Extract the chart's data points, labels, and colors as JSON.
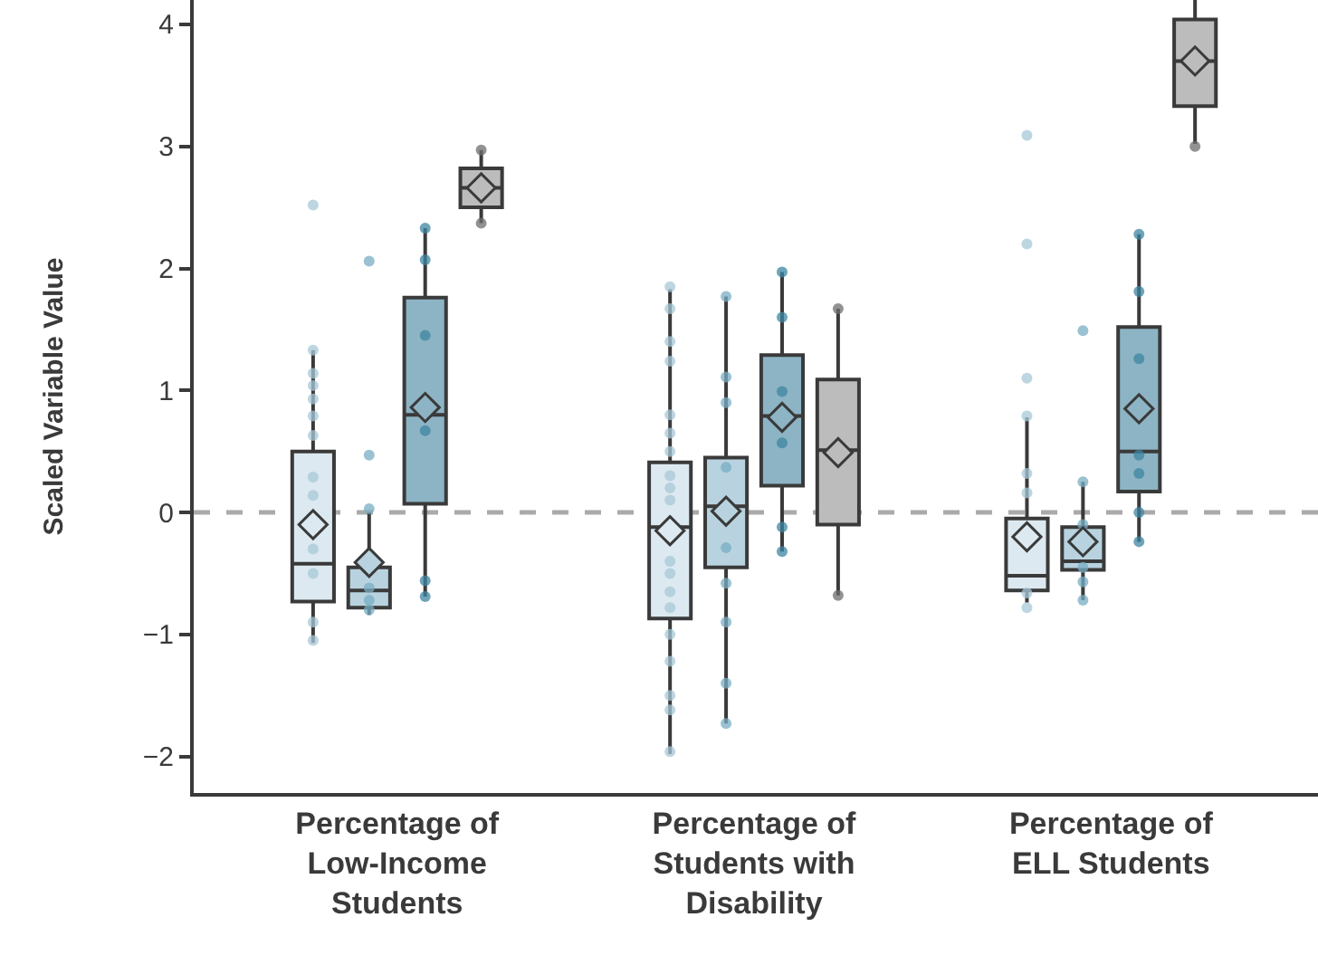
{
  "chart_data": {
    "type": "box",
    "ylabel": "Scaled Variable Value",
    "categories": [
      "Percentage of\nLow-Income\nStudents",
      "Percentage of\nStudents with\nDisability",
      "Percentage of\nELL Students"
    ],
    "ylim": [
      -2.3,
      4.2
    ],
    "yticks": [
      {
        "value": -2,
        "label": "−2"
      },
      {
        "value": -1,
        "label": "−1"
      },
      0,
      1,
      2,
      3,
      4
    ],
    "ref_lines": [
      {
        "axis": "y",
        "value": 0,
        "color": "#aaaaaa",
        "line_style": "dashed"
      }
    ],
    "marker": "circle",
    "series": [
      {
        "type": "box",
        "color": "#dce9f0",
        "boxes": [
          {
            "low": -1.07,
            "q1": -0.73,
            "median": -0.42,
            "q3": 0.5,
            "high": 1.33,
            "mean": -0.1
          },
          {
            "low": -1.98,
            "q1": -0.87,
            "median": -0.12,
            "q3": 0.41,
            "high": 1.83,
            "mean": -0.15
          },
          {
            "low": -0.74,
            "q1": -0.64,
            "median": -0.52,
            "q3": -0.05,
            "high": 0.78,
            "mean": -0.2
          }
        ]
      },
      {
        "type": "box",
        "color": "#b8d3df",
        "boxes": [
          {
            "low": -0.84,
            "q1": -0.78,
            "median": -0.64,
            "q3": -0.45,
            "high": 0.0,
            "mean": -0.41
          },
          {
            "low": -1.73,
            "q1": -0.45,
            "median": 0.05,
            "q3": 0.45,
            "high": 1.77,
            "mean": 0.01
          },
          {
            "low": -0.72,
            "q1": -0.47,
            "median": -0.4,
            "q3": -0.12,
            "high": 0.25,
            "mean": -0.24
          }
        ]
      },
      {
        "type": "box",
        "color": "#8db4c4",
        "boxes": [
          {
            "low": -0.69,
            "q1": 0.07,
            "median": 0.8,
            "q3": 1.76,
            "high": 2.33,
            "mean": 0.86
          },
          {
            "low": -0.32,
            "q1": 0.22,
            "median": 0.79,
            "q3": 1.29,
            "high": 1.97,
            "mean": 0.78
          },
          {
            "low": -0.24,
            "q1": 0.17,
            "median": 0.5,
            "q3": 1.52,
            "high": 2.28,
            "mean": 0.85
          }
        ]
      },
      {
        "type": "box",
        "color": "#bcbcbc",
        "boxes": [
          {
            "low": 2.37,
            "q1": 2.5,
            "median": 2.66,
            "q3": 2.82,
            "high": 2.97,
            "mean": 2.66
          },
          {
            "low": -0.68,
            "q1": -0.1,
            "median": 0.51,
            "q3": 1.09,
            "high": 1.67,
            "mean": 0.49
          },
          {
            "low": 3.02,
            "q1": 3.33,
            "median": 3.7,
            "q3": 4.04,
            "high": 4.2,
            "mean": 3.7
          }
        ]
      },
      {
        "type": "scatter",
        "color": "#a7c8d7",
        "x": [
          "Percentage of\nLow-Income\nStudents",
          "Percentage of\nLow-Income\nStudents",
          "Percentage of\nLow-Income\nStudents",
          "Percentage of\nLow-Income\nStudents",
          "Percentage of\nLow-Income\nStudents",
          "Percentage of\nLow-Income\nStudents",
          "Percentage of\nLow-Income\nStudents",
          "Percentage of\nLow-Income\nStudents",
          "Percentage of\nLow-Income\nStudents",
          "Percentage of\nLow-Income\nStudents",
          "Percentage of\nLow-Income\nStudents",
          "Percentage of\nLow-Income\nStudents",
          "Percentage of\nLow-Income\nStudents",
          "Percentage of\nStudents with\nDisability",
          "Percentage of\nStudents with\nDisability",
          "Percentage of\nStudents with\nDisability",
          "Percentage of\nStudents with\nDisability",
          "Percentage of\nStudents with\nDisability",
          "Percentage of\nStudents with\nDisability",
          "Percentage of\nStudents with\nDisability",
          "Percentage of\nStudents with\nDisability",
          "Percentage of\nStudents with\nDisability",
          "Percentage of\nStudents with\nDisability",
          "Percentage of\nStudents with\nDisability",
          "Percentage of\nStudents with\nDisability",
          "Percentage of\nStudents with\nDisability",
          "Percentage of\nStudents with\nDisability",
          "Percentage of\nStudents with\nDisability",
          "Percentage of\nStudents with\nDisability",
          "Percentage of\nStudents with\nDisability",
          "Percentage of\nStudents with\nDisability",
          "Percentage of\nStudents with\nDisability",
          "Percentage of\nELL Students",
          "Percentage of\nELL Students",
          "Percentage of\nELL Students",
          "Percentage of\nELL Students",
          "Percentage of\nELL Students",
          "Percentage of\nELL Students",
          "Percentage of\nELL Students",
          "Percentage of\nELL Students"
        ],
        "values": [
          2.52,
          1.33,
          1.14,
          1.04,
          0.93,
          0.79,
          0.63,
          0.29,
          0.14,
          -0.3,
          -0.5,
          -0.9,
          -1.05,
          1.85,
          1.67,
          1.4,
          1.24,
          0.8,
          0.65,
          0.5,
          0.3,
          0.2,
          0.1,
          -0.4,
          -0.5,
          -0.65,
          -0.78,
          -1.0,
          -1.22,
          -1.5,
          -1.62,
          -1.96,
          3.09,
          2.2,
          1.1,
          0.79,
          0.32,
          0.16,
          -0.66,
          -0.78
        ]
      },
      {
        "type": "scatter",
        "color": "#78aec4",
        "x": [
          "Percentage of\nLow-Income\nStudents",
          "Percentage of\nLow-Income\nStudents",
          "Percentage of\nLow-Income\nStudents",
          "Percentage of\nLow-Income\nStudents",
          "Percentage of\nLow-Income\nStudents",
          "Percentage of\nLow-Income\nStudents",
          "Percentage of\nStudents with\nDisability",
          "Percentage of\nStudents with\nDisability",
          "Percentage of\nStudents with\nDisability",
          "Percentage of\nStudents with\nDisability",
          "Percentage of\nStudents with\nDisability",
          "Percentage of\nStudents with\nDisability",
          "Percentage of\nStudents with\nDisability",
          "Percentage of\nStudents with\nDisability",
          "Percentage of\nStudents with\nDisability",
          "Percentage of\nELL Students",
          "Percentage of\nELL Students",
          "Percentage of\nELL Students",
          "Percentage of\nELL Students",
          "Percentage of\nELL Students",
          "Percentage of\nELL Students"
        ],
        "values": [
          2.06,
          0.47,
          0.03,
          -0.62,
          -0.72,
          -0.8,
          1.77,
          1.11,
          0.9,
          0.37,
          -0.29,
          -0.58,
          -0.9,
          -1.4,
          -1.73,
          1.49,
          0.25,
          -0.1,
          -0.45,
          -0.57,
          -0.72
        ]
      },
      {
        "type": "scatter",
        "color": "#3e85a2",
        "x": [
          "Percentage of\nLow-Income\nStudents",
          "Percentage of\nLow-Income\nStudents",
          "Percentage of\nLow-Income\nStudents",
          "Percentage of\nLow-Income\nStudents",
          "Percentage of\nLow-Income\nStudents",
          "Percentage of\nLow-Income\nStudents",
          "Percentage of\nStudents with\nDisability",
          "Percentage of\nStudents with\nDisability",
          "Percentage of\nStudents with\nDisability",
          "Percentage of\nStudents with\nDisability",
          "Percentage of\nStudents with\nDisability",
          "Percentage of\nStudents with\nDisability",
          "Percentage of\nELL Students",
          "Percentage of\nELL Students",
          "Percentage of\nELL Students",
          "Percentage of\nELL Students",
          "Percentage of\nELL Students",
          "Percentage of\nELL Students",
          "Percentage of\nELL Students"
        ],
        "values": [
          2.33,
          2.07,
          1.45,
          0.67,
          -0.56,
          -0.69,
          1.97,
          1.6,
          0.99,
          0.57,
          -0.12,
          -0.32,
          2.28,
          1.81,
          1.26,
          0.47,
          0.32,
          0.0,
          -0.24
        ]
      },
      {
        "type": "scatter",
        "color": "#6e6e6e",
        "x": [
          "Percentage of\nLow-Income\nStudents",
          "Percentage of\nLow-Income\nStudents",
          "Percentage of\nStudents with\nDisability",
          "Percentage of\nStudents with\nDisability",
          "Percentage of\nELL Students"
        ],
        "values": [
          2.97,
          2.37,
          1.67,
          -0.68,
          3.0
        ]
      }
    ]
  }
}
